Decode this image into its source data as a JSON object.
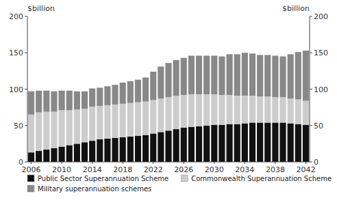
{
  "chart_data": {
    "type": "bar",
    "stacked": true,
    "categories": [
      2006,
      null,
      null,
      null,
      2010,
      null,
      null,
      null,
      2014,
      null,
      null,
      null,
      2018,
      null,
      null,
      null,
      2022,
      null,
      null,
      null,
      2026,
      null,
      null,
      null,
      2030,
      null,
      null,
      null,
      2034,
      null,
      null,
      null,
      2038,
      null,
      null,
      null,
      2042
    ],
    "series": [
      {
        "name": "Public Sector Superannuation Scheme",
        "color": "#111111",
        "values": [
          13,
          15,
          17,
          19,
          21,
          23,
          25,
          27,
          29,
          31,
          32,
          33,
          34,
          35,
          36,
          37,
          39,
          41,
          43,
          45,
          47,
          48,
          49,
          50,
          51,
          51,
          52,
          52,
          53,
          54,
          54,
          54,
          54,
          54,
          53,
          52,
          51
        ]
      },
      {
        "name": "Commonwealth Superannuation Scheme",
        "color": "#cccccc",
        "values": [
          52,
          53,
          52,
          50,
          50,
          48,
          47,
          46,
          47,
          46,
          46,
          46,
          46,
          46,
          46,
          46,
          46,
          46,
          46,
          46,
          45,
          45,
          44,
          43,
          42,
          41,
          40,
          39,
          38,
          37,
          36,
          36,
          35,
          35,
          34,
          34,
          33
        ]
      },
      {
        "name": "Military superannuation schemes",
        "color": "#888888",
        "values": [
          32,
          30,
          29,
          28,
          27,
          27,
          25,
          24,
          25,
          25,
          26,
          27,
          29,
          30,
          31,
          33,
          39,
          44,
          47,
          49,
          51,
          53,
          53,
          53,
          53,
          53,
          56,
          57,
          59,
          58,
          57,
          57,
          57,
          56,
          61,
          65,
          69
        ]
      }
    ],
    "ylabel": "$billion",
    "y2label": "$billion",
    "ylim": [
      0,
      200
    ],
    "yticks": [
      0,
      50,
      100,
      150,
      200
    ],
    "y2lim": [
      0,
      200
    ],
    "y2ticks": [
      0,
      50,
      100,
      150,
      200
    ],
    "grid": false,
    "legend": "bottom"
  }
}
